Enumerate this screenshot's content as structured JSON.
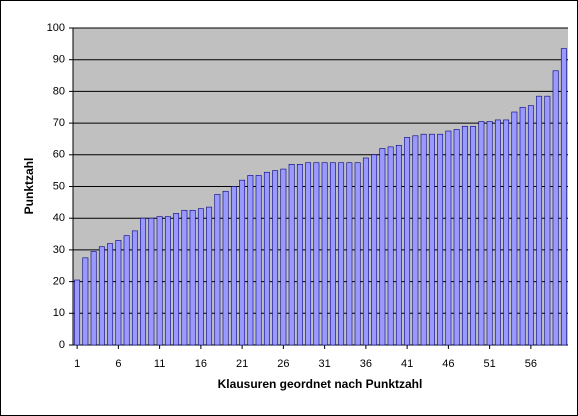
{
  "chart_data": {
    "type": "bar",
    "x_label": "Klausuren geordnet nach Punktzahl",
    "y_label": "Punktzahl",
    "categories": [
      1,
      null,
      null,
      null,
      null,
      6,
      null,
      null,
      null,
      null,
      11,
      null,
      null,
      null,
      null,
      16,
      null,
      null,
      null,
      null,
      21,
      null,
      null,
      null,
      null,
      26,
      null,
      null,
      null,
      null,
      31,
      null,
      null,
      null,
      null,
      36,
      null,
      null,
      null,
      null,
      41,
      null,
      null,
      null,
      null,
      46,
      null,
      null,
      null,
      null,
      51,
      null,
      null,
      null,
      null,
      56,
      null,
      null,
      null,
      null
    ],
    "values": [
      20.5,
      27.5,
      29.5,
      31,
      32,
      33,
      34.5,
      36,
      40,
      40,
      40.5,
      40.5,
      41.5,
      42.5,
      42.5,
      43,
      43.5,
      47.5,
      48.5,
      50,
      52,
      53.5,
      53.5,
      54.5,
      55,
      55.5,
      57,
      57,
      57.5,
      57.5,
      57.5,
      57.5,
      57.5,
      57.5,
      57.5,
      59,
      60,
      62,
      62.5,
      63,
      65.5,
      66,
      66.5,
      66.5,
      66.5,
      67.5,
      68,
      69,
      69,
      70.5,
      70.5,
      71,
      71,
      73.5,
      75,
      75.5,
      78.5,
      78.5,
      86.5,
      93.5
    ],
    "color": "#9999ff",
    "ylim": [
      0,
      100
    ],
    "yticks": [
      0,
      10,
      20,
      30,
      40,
      50,
      60,
      70,
      80,
      90,
      100
    ],
    "grid": true
  }
}
